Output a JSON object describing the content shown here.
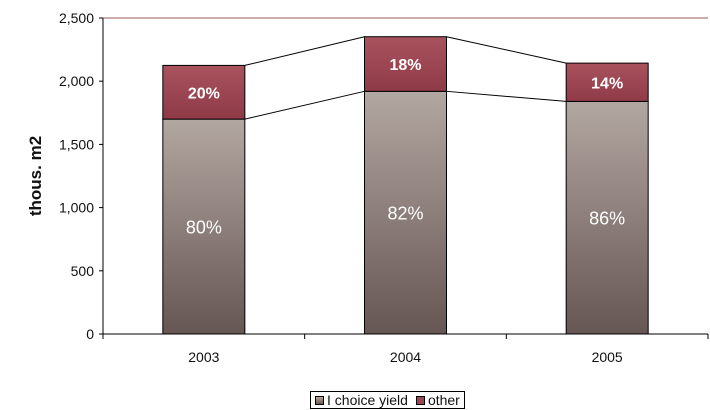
{
  "chart_data": {
    "type": "bar",
    "stacked": true,
    "categories": [
      "2003",
      "2004",
      "2005"
    ],
    "series": [
      {
        "name": "I choice yield",
        "values": [
          1700,
          1920,
          1840
        ],
        "labels": [
          "80%",
          "82%",
          "86%"
        ],
        "color": "#8f7f7b"
      },
      {
        "name": "other",
        "values": [
          425,
          432,
          303
        ],
        "labels": [
          "20%",
          "18%",
          "14%"
        ],
        "color": "#9c4652"
      }
    ],
    "title": "",
    "xlabel": "",
    "ylabel": "thous. m2",
    "ylim": [
      0,
      2500
    ],
    "yticks": [
      0,
      500,
      1000,
      1500,
      2000,
      2500
    ],
    "ytick_labels": [
      "0",
      "500",
      "1,000",
      "1,500",
      "2,000",
      "2,500"
    ],
    "grid": false,
    "legend_position": "bottom"
  },
  "colors": {
    "top_reference_line": "#9b5a55",
    "series_line": "#000000"
  }
}
